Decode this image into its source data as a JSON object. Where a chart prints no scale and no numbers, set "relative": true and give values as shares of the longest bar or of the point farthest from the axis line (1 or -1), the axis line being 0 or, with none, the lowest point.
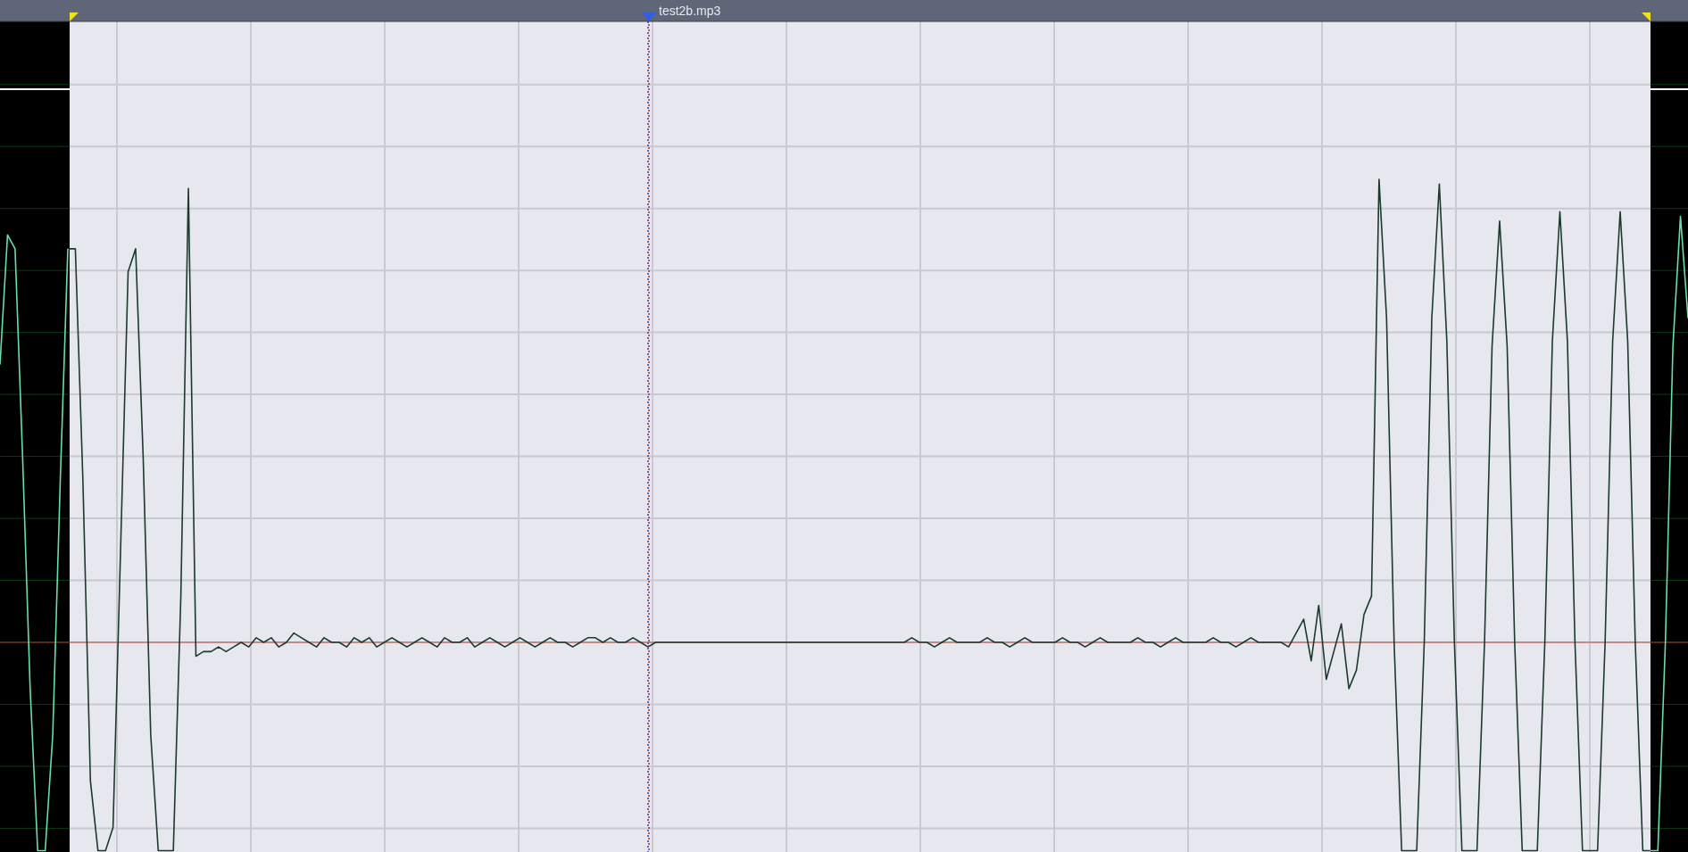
{
  "chart_data": {
    "type": "line",
    "title": "test2b.mp3",
    "relative": true,
    "grid": true,
    "ref_lines": [
      {
        "axis": "y",
        "value": 0,
        "color": "#c0392b"
      }
    ],
    "categories": [
      null,
      null,
      null,
      null,
      null,
      null,
      null,
      null,
      null,
      null,
      null,
      null,
      null,
      null,
      null,
      null,
      null,
      null,
      null,
      null,
      null,
      null,
      null,
      null,
      null,
      null,
      null,
      null,
      null,
      null,
      null,
      null,
      null,
      null,
      null,
      null,
      null,
      null,
      null,
      null,
      null,
      null,
      null,
      null,
      null,
      null,
      null,
      null,
      null,
      null,
      null,
      null,
      null,
      null,
      null,
      null,
      null,
      null,
      null,
      null,
      null,
      null,
      null,
      null,
      null,
      null,
      null,
      null,
      null,
      null,
      null,
      null,
      null,
      null,
      null,
      null,
      null,
      null,
      null,
      null,
      null,
      null,
      null,
      null,
      null,
      null,
      null,
      null,
      null,
      null,
      null,
      null,
      null,
      null,
      null,
      null,
      null,
      null,
      null,
      null,
      null,
      null,
      null,
      null,
      null,
      null,
      null,
      null,
      null,
      null,
      null,
      null,
      null,
      null,
      null,
      null,
      null,
      null,
      null,
      null,
      null,
      null,
      null,
      null,
      null,
      null,
      null,
      null,
      null,
      null,
      null,
      null,
      null,
      null,
      null,
      null,
      null,
      null,
      null,
      null,
      null,
      null,
      null,
      null,
      null,
      null,
      null,
      null,
      null,
      null,
      null,
      null,
      null,
      null,
      null,
      null,
      null,
      null,
      null,
      null,
      null,
      null,
      null,
      null,
      null,
      null,
      null,
      null,
      null,
      null,
      null,
      null,
      null,
      null,
      null,
      null,
      null,
      null,
      null,
      null,
      null,
      null,
      null,
      null,
      null,
      null,
      null,
      null,
      null,
      null,
      null,
      null,
      null,
      null,
      null,
      null,
      null,
      null,
      null,
      null,
      null,
      null,
      null,
      null,
      null,
      null,
      null,
      null,
      null,
      null,
      null,
      null,
      null,
      null,
      null,
      null,
      null,
      null,
      null,
      null,
      null,
      null,
      null,
      null,
      null
    ],
    "series": [
      {
        "color": "#1b3a2c",
        "values": [
          null,
          null,
          null,
          null,
          null,
          null,
          null,
          null,
          null,
          0.85,
          0.85,
          0.35,
          -0.3,
          -0.45,
          -0.45,
          -0.4,
          0.2,
          0.8,
          0.85,
          0.4,
          -0.2,
          -0.45,
          -0.45,
          -0.45,
          0.1,
          0.98,
          -0.03,
          -0.02,
          -0.02,
          -0.01,
          -0.02,
          -0.01,
          0,
          -0.01,
          0.01,
          0,
          0.01,
          -0.01,
          0,
          0.02,
          0.01,
          0,
          -0.01,
          0.01,
          0,
          0,
          -0.01,
          0.01,
          0,
          0.01,
          -0.01,
          0,
          0.01,
          0,
          -0.01,
          0,
          0.01,
          0,
          -0.01,
          0.01,
          0,
          0,
          0.01,
          -0.01,
          0,
          0.01,
          0,
          -0.01,
          0,
          0.01,
          0,
          -0.01,
          0,
          0.01,
          0,
          0,
          -0.01,
          0,
          0.01,
          0.01,
          0,
          0.01,
          0,
          0,
          0.01,
          0,
          -0.01,
          0,
          0,
          0,
          0,
          0,
          0,
          0,
          0,
          0,
          0,
          0,
          0,
          0,
          0,
          0,
          0,
          0,
          0,
          0,
          0,
          0,
          0,
          0,
          0,
          0,
          0,
          0,
          0,
          0,
          0,
          0,
          0,
          0,
          0,
          0.01,
          0,
          0,
          -0.01,
          0,
          0.01,
          0,
          0,
          0,
          0,
          0.01,
          0,
          0,
          -0.01,
          0,
          0.01,
          0,
          0,
          0,
          0,
          0.01,
          0,
          0,
          -0.01,
          0,
          0.01,
          0,
          0,
          0,
          0,
          0.01,
          0,
          0,
          -0.01,
          0,
          0.01,
          0,
          0,
          0,
          0,
          0.01,
          0,
          0,
          -0.01,
          0,
          0.01,
          0,
          0,
          0,
          0,
          -0.01,
          0.02,
          0.05,
          -0.04,
          0.08,
          -0.08,
          -0.02,
          0.04,
          -0.1,
          -0.06,
          0.06,
          0.1,
          1.0,
          0.7,
          0,
          -0.45,
          -0.45,
          -0.45,
          0,
          0.7,
          0.99,
          0.65,
          0,
          -0.45,
          -0.45,
          -0.45,
          0,
          0.64,
          0.91,
          0.64,
          0,
          -0.45,
          -0.45,
          -0.45,
          0,
          0.65,
          0.93,
          0.65,
          0,
          -0.45,
          -0.45,
          -0.45,
          0,
          0.65,
          0.93,
          0.65,
          0,
          -0.45,
          -0.45,
          null,
          null,
          null,
          null,
          null
        ]
      },
      {
        "color": "#66e0a8",
        "values": [
          0.6,
          0.88,
          0.85,
          0.4,
          -0.1,
          -0.45,
          -0.45,
          -0.2,
          0.35,
          0.85,
          null,
          null,
          null,
          null,
          null,
          null,
          null,
          null,
          null,
          null,
          null,
          null,
          null,
          null,
          null,
          null,
          null,
          null,
          null,
          null,
          null,
          null,
          null,
          null,
          null,
          null,
          null,
          null,
          null,
          null,
          null,
          null,
          null,
          null,
          null,
          null,
          null,
          null,
          null,
          null,
          null,
          null,
          null,
          null,
          null,
          null,
          null,
          null,
          null,
          null,
          null,
          null,
          null,
          null,
          null,
          null,
          null,
          null,
          null,
          null,
          null,
          null,
          null,
          null,
          null,
          null,
          null,
          null,
          null,
          null,
          null,
          null,
          null,
          null,
          null,
          null,
          null,
          null,
          null,
          null,
          null,
          null,
          null,
          null,
          null,
          null,
          null,
          null,
          null,
          null,
          null,
          null,
          null,
          null,
          null,
          null,
          null,
          null,
          null,
          null,
          null,
          null,
          null,
          null,
          null,
          null,
          null,
          null,
          null,
          null,
          null,
          null,
          null,
          null,
          null,
          null,
          null,
          null,
          null,
          null,
          null,
          null,
          null,
          null,
          null,
          null,
          null,
          null,
          null,
          null,
          null,
          null,
          null,
          null,
          null,
          null,
          null,
          null,
          null,
          null,
          null,
          null,
          null,
          null,
          null,
          null,
          null,
          null,
          null,
          null,
          null,
          null,
          null,
          null,
          null,
          null,
          null,
          null,
          null,
          null,
          null,
          null,
          null,
          null,
          null,
          null,
          null,
          null,
          null,
          null,
          null,
          null,
          null,
          null,
          null,
          null,
          null,
          null,
          null,
          null,
          null,
          null,
          null,
          null,
          null,
          null,
          null,
          null,
          null,
          null,
          null,
          null,
          null,
          null,
          null,
          null,
          null,
          null,
          null,
          null,
          null,
          null,
          null,
          null,
          null,
          null,
          null,
          null,
          null,
          -0.45,
          -0.45,
          0,
          0.64,
          0.92,
          0.7
        ]
      }
    ]
  }
}
